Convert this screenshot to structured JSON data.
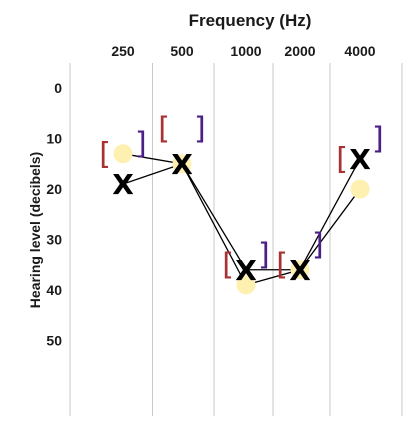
{
  "chart_data": {
    "type": "line",
    "title": "Frequency (Hz)",
    "xlabel": "Frequency (Hz)",
    "ylabel": "Hearing level (decibels)",
    "x_ticks": [
      "250",
      "500",
      "1000",
      "2000",
      "4000"
    ],
    "y_ticks": [
      "0",
      "10",
      "20",
      "30",
      "40",
      "50"
    ],
    "ylim": [
      -5,
      65
    ],
    "y_inverted": true,
    "grid": "vertical",
    "series": [
      {
        "marker": "X",
        "color": "#000000",
        "values": [
          19,
          15,
          36,
          36,
          14
        ]
      },
      {
        "marker": "circle",
        "color": "#fdf0b0",
        "values": [
          13,
          15,
          39,
          36,
          20
        ]
      }
    ],
    "bracket_pairs": [
      {
        "x": "250",
        "left_y": 13,
        "right_y": 11
      },
      {
        "x": "500",
        "left_y": 8,
        "right_y": 8
      },
      {
        "x": "1000",
        "left_y": 35,
        "right_y": 33
      },
      {
        "x": "2000",
        "left_y": 35,
        "right_y": 31
      },
      {
        "x": "4000",
        "left_y": 14,
        "right_y": 10
      }
    ],
    "colors": {
      "circle_fill": "#fdf0b0",
      "x_marker": "#000000",
      "left_bracket": "#a83232",
      "right_bracket": "#4a1f86",
      "grid": "#c8c8c8",
      "line": "#000000"
    }
  }
}
